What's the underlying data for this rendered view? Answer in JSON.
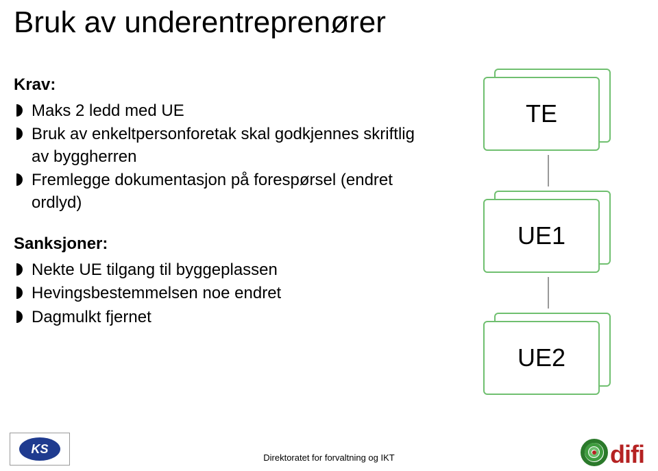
{
  "title": "Bruk av underentreprenører",
  "sections": {
    "krav": {
      "label": "Krav:",
      "items": [
        "Maks 2 ledd med UE",
        "Bruk av enkeltpersonforetak skal godkjennes skriftlig av byggherren",
        "Fremlegge dokumentasjon på forespørsel (endret ordlyd)"
      ]
    },
    "sanksjoner": {
      "label": "Sanksjoner:",
      "items": [
        "Nekte UE tilgang til byggeplassen",
        "Hevingsbestemmelsen noe endret",
        "Dagmulkt fjernet"
      ]
    }
  },
  "diagram": {
    "nodes": [
      {
        "label": "TE",
        "border": "#6fbf6f",
        "back_border": "#6fbf6f"
      },
      {
        "label": "UE1",
        "border": "#6fbf6f",
        "back_border": "#6fbf6f"
      },
      {
        "label": "UE2",
        "border": "#6fbf6f",
        "back_border": "#6fbf6f"
      }
    ],
    "connector_color": "#999999"
  },
  "footer": {
    "ks_label": "KS",
    "center_text": "Direktoratet for forvaltning og IKT",
    "difi": {
      "text": "difi",
      "text_color": "#b52222",
      "ring_colors": [
        "#2b7a2b",
        "#3f9c3f",
        "#6fbf6f"
      ],
      "dot_color": "#b52222"
    }
  },
  "colors": {
    "background": "#ffffff",
    "text": "#000000"
  }
}
